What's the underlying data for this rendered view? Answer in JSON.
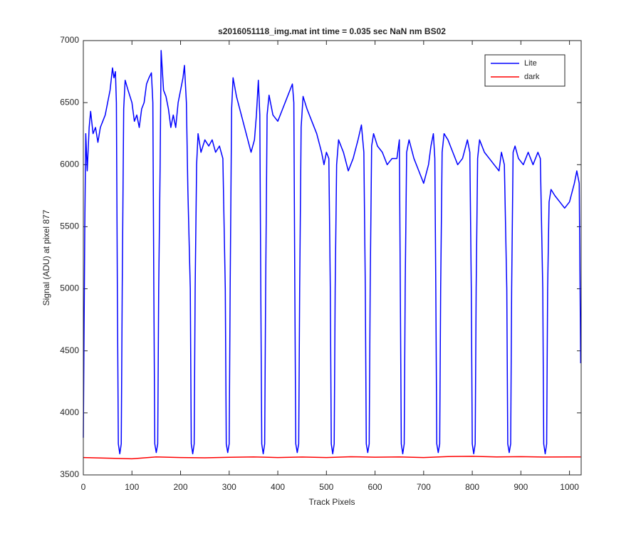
{
  "chart_data": {
    "type": "line",
    "title": "s2016051118_img.mat int time = 0.035 sec  NaN nm BS02",
    "xlabel": "Track Pixels",
    "ylabel": "Signal (ADU) at pixel 877",
    "xlim": [
      0,
      1024
    ],
    "xticks": [
      0,
      100,
      200,
      300,
      400,
      500,
      600,
      700,
      800,
      900,
      1000
    ],
    "ylim": [
      3500,
      7000
    ],
    "yticks": [
      3500,
      4000,
      4500,
      5000,
      5500,
      6000,
      6500,
      7000
    ],
    "legend": "northeast",
    "series": [
      {
        "name": "Lite",
        "color": "#0000ff",
        "x": [
          0,
          3,
          5,
          8,
          12,
          15,
          20,
          25,
          30,
          35,
          40,
          45,
          50,
          55,
          60,
          63,
          66,
          68,
          70,
          72,
          75,
          78,
          80,
          83,
          86,
          92,
          100,
          105,
          110,
          115,
          120,
          125,
          130,
          135,
          140,
          143,
          145,
          147,
          150,
          153,
          155,
          158,
          160,
          165,
          170,
          175,
          180,
          185,
          190,
          195,
          200,
          205,
          208,
          212,
          215,
          220,
          222,
          225,
          228,
          230,
          233,
          236,
          242,
          250,
          258,
          265,
          272,
          280,
          287,
          292,
          294,
          297,
          300,
          302,
          305,
          308,
          315,
          325,
          335,
          345,
          352,
          356,
          360,
          363,
          365,
          367,
          370,
          373,
          375,
          378,
          382,
          390,
          400,
          410,
          420,
          430,
          433,
          435,
          437,
          440,
          443,
          445,
          448,
          452,
          460,
          470,
          480,
          490,
          495,
          500,
          505,
          508,
          510,
          513,
          516,
          518,
          521,
          525,
          535,
          545,
          555,
          565,
          572,
          577,
          580,
          582,
          585,
          588,
          590,
          593,
          597,
          605,
          615,
          625,
          635,
          645,
          650,
          652,
          654,
          657,
          660,
          662,
          665,
          670,
          680,
          690,
          700,
          710,
          715,
          720,
          723,
          725,
          727,
          730,
          733,
          735,
          738,
          742,
          750,
          760,
          770,
          780,
          790,
          795,
          798,
          800,
          803,
          806,
          808,
          811,
          815,
          825,
          835,
          845,
          855,
          860,
          866,
          871,
          873,
          876,
          879,
          881,
          884,
          888,
          895,
          905,
          915,
          925,
          935,
          940,
          945,
          947,
          950,
          953,
          955,
          958,
          962,
          970,
          980,
          990,
          1000,
          1010,
          1015,
          1020,
          1023
        ],
        "values": [
          3800,
          5500,
          6250,
          5950,
          6300,
          6430,
          6250,
          6300,
          6180,
          6300,
          6350,
          6400,
          6500,
          6600,
          6780,
          6700,
          6750,
          6500,
          5000,
          3750,
          3670,
          3750,
          5000,
          6450,
          6680,
          6600,
          6500,
          6350,
          6400,
          6300,
          6450,
          6500,
          6650,
          6700,
          6740,
          6500,
          5000,
          3750,
          3680,
          3750,
          5000,
          6000,
          6920,
          6600,
          6550,
          6450,
          6300,
          6400,
          6300,
          6500,
          6600,
          6700,
          6800,
          6500,
          5800,
          5000,
          3750,
          3670,
          3750,
          5000,
          6000,
          6250,
          6100,
          6200,
          6150,
          6200,
          6100,
          6150,
          6050,
          5000,
          3750,
          3680,
          3750,
          5000,
          6450,
          6700,
          6550,
          6400,
          6250,
          6100,
          6200,
          6400,
          6680,
          6400,
          5000,
          3750,
          3670,
          3750,
          5000,
          6400,
          6560,
          6400,
          6350,
          6450,
          6550,
          6650,
          6500,
          5000,
          3750,
          3680,
          3750,
          5000,
          6300,
          6550,
          6450,
          6350,
          6250,
          6100,
          6000,
          6100,
          6050,
          5000,
          3750,
          3670,
          3750,
          5000,
          6000,
          6200,
          6100,
          5950,
          6050,
          6200,
          6320,
          6100,
          5000,
          3750,
          3680,
          3750,
          5000,
          6150,
          6250,
          6150,
          6100,
          6000,
          6050,
          6050,
          6200,
          5000,
          3750,
          3670,
          3750,
          5000,
          6100,
          6200,
          6050,
          5950,
          5850,
          6000,
          6150,
          6250,
          6050,
          5000,
          3750,
          3680,
          3750,
          5000,
          6100,
          6250,
          6200,
          6100,
          6000,
          6050,
          6200,
          6100,
          5000,
          3750,
          3670,
          3750,
          5000,
          6050,
          6200,
          6100,
          6050,
          6000,
          5950,
          6100,
          6000,
          5000,
          3750,
          3680,
          3750,
          5000,
          6100,
          6150,
          6050,
          6000,
          6100,
          6000,
          6100,
          6050,
          5000,
          3750,
          3670,
          3750,
          5000,
          5700,
          5800,
          5750,
          5700,
          5650,
          5700,
          5850,
          5950,
          5850,
          4400
        ]
      },
      {
        "name": "dark",
        "color": "#ff0000",
        "x": [
          0,
          50,
          100,
          150,
          200,
          250,
          300,
          350,
          400,
          450,
          500,
          550,
          600,
          650,
          700,
          750,
          800,
          850,
          900,
          950,
          1000,
          1023
        ],
        "values": [
          3640,
          3635,
          3630,
          3645,
          3640,
          3638,
          3642,
          3645,
          3640,
          3644,
          3640,
          3646,
          3643,
          3645,
          3640,
          3648,
          3650,
          3645,
          3647,
          3644,
          3645,
          3645
        ]
      }
    ]
  }
}
